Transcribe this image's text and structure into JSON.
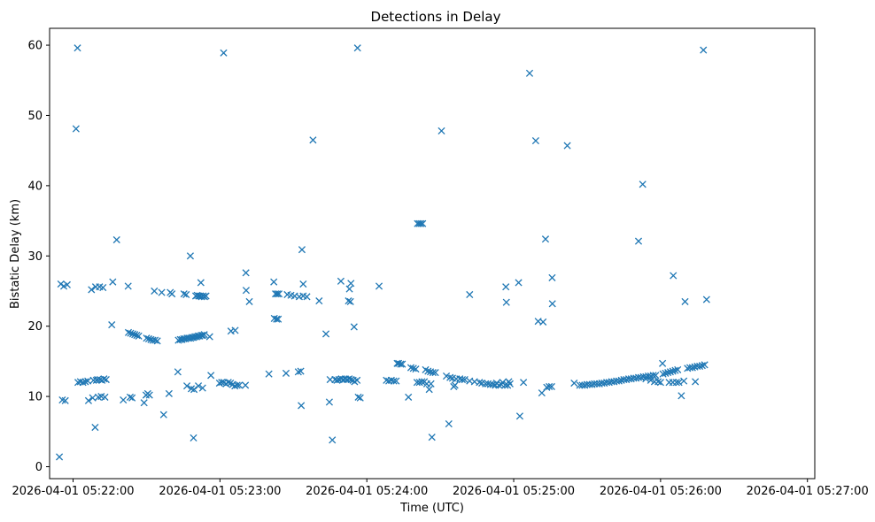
{
  "chart_data": {
    "type": "scatter",
    "title": "Detections in Delay",
    "xlabel": "Time (UTC)",
    "ylabel": "Bistatic Delay (km)",
    "x_unit": "seconds after 2026-04-01 05:21:00 UTC",
    "xlim": [
      50.4,
      363.0
    ],
    "ylim": [
      -1.7,
      62.4
    ],
    "marker": "x",
    "color": "#1f77b4",
    "grid": false,
    "x_ticks": [
      {
        "value": 60,
        "label": "2026-04-01 05:22:00"
      },
      {
        "value": 120,
        "label": "2026-04-01 05:23:00"
      },
      {
        "value": 180,
        "label": "2026-04-01 05:24:00"
      },
      {
        "value": 240,
        "label": "2026-04-01 05:25:00"
      },
      {
        "value": 300,
        "label": "2026-04-01 05:26:00"
      },
      {
        "value": 360,
        "label": "2026-04-01 05:27:00"
      }
    ],
    "y_ticks": [
      {
        "value": 0,
        "label": "0"
      },
      {
        "value": 10,
        "label": "10"
      },
      {
        "value": 20,
        "label": "20"
      },
      {
        "value": 30,
        "label": "30"
      },
      {
        "value": 40,
        "label": "40"
      },
      {
        "value": 50,
        "label": "50"
      },
      {
        "value": 60,
        "label": "60"
      }
    ],
    "points": [
      [
        54.4,
        1.4
      ],
      [
        55.0,
        26.0
      ],
      [
        55.6,
        9.5
      ],
      [
        56.2,
        25.7
      ],
      [
        56.8,
        9.4
      ],
      [
        57.6,
        25.9
      ],
      [
        61.2,
        48.1
      ],
      [
        61.8,
        59.6
      ],
      [
        62.0,
        12.0
      ],
      [
        63.0,
        12.1
      ],
      [
        64.0,
        12.0
      ],
      [
        65.0,
        12.1
      ],
      [
        66.0,
        12.2
      ],
      [
        66.3,
        9.4
      ],
      [
        67.5,
        25.2
      ],
      [
        68.0,
        9.8
      ],
      [
        68.3,
        12.3
      ],
      [
        69.0,
        5.6
      ],
      [
        69.2,
        25.6
      ],
      [
        69.5,
        12.3
      ],
      [
        70.0,
        12.4
      ],
      [
        70.3,
        9.9
      ],
      [
        70.8,
        25.6
      ],
      [
        71.0,
        12.4
      ],
      [
        71.5,
        10.0
      ],
      [
        71.8,
        12.3
      ],
      [
        72.2,
        25.5
      ],
      [
        72.6,
        12.5
      ],
      [
        73.0,
        9.9
      ],
      [
        73.5,
        12.4
      ],
      [
        75.8,
        20.2
      ],
      [
        76.2,
        26.3
      ],
      [
        77.8,
        32.3
      ],
      [
        80.5,
        9.5
      ],
      [
        82.5,
        25.7
      ],
      [
        82.6,
        19.1
      ],
      [
        83.3,
        9.9
      ],
      [
        83.5,
        19.0
      ],
      [
        84.1,
        9.8
      ],
      [
        84.4,
        18.9
      ],
      [
        85.2,
        18.8
      ],
      [
        86.0,
        18.7
      ],
      [
        86.8,
        18.6
      ],
      [
        89.0,
        9.1
      ],
      [
        89.8,
        10.2
      ],
      [
        90.0,
        18.3
      ],
      [
        90.5,
        10.4
      ],
      [
        90.9,
        18.2
      ],
      [
        91.2,
        10.2
      ],
      [
        91.8,
        18.1
      ],
      [
        92.6,
        18.0
      ],
      [
        93.2,
        25.0
      ],
      [
        93.5,
        18.0
      ],
      [
        94.4,
        17.9
      ],
      [
        96.2,
        24.8
      ],
      [
        97.0,
        7.4
      ],
      [
        99.2,
        10.4
      ],
      [
        99.7,
        24.8
      ],
      [
        100.4,
        24.6
      ],
      [
        102.8,
        13.5
      ],
      [
        103.0,
        18.0
      ],
      [
        103.8,
        18.1
      ],
      [
        104.5,
        18.1
      ],
      [
        105.2,
        18.2
      ],
      [
        105.3,
        24.6
      ],
      [
        105.9,
        18.2
      ],
      [
        106.2,
        24.5
      ],
      [
        106.5,
        11.5
      ],
      [
        106.6,
        18.3
      ],
      [
        107.3,
        18.3
      ],
      [
        108.0,
        18.3
      ],
      [
        108.3,
        11.1
      ],
      [
        108.6,
        18.4
      ],
      [
        109.2,
        18.4
      ],
      [
        109.8,
        18.5
      ],
      [
        110.5,
        18.5
      ],
      [
        111.1,
        18.6
      ],
      [
        111.7,
        18.6
      ],
      [
        112.4,
        18.7
      ],
      [
        113.0,
        18.7
      ],
      [
        113.6,
        18.8
      ],
      [
        107.9,
        30.0
      ],
      [
        109.2,
        4.1
      ],
      [
        109.4,
        11.0
      ],
      [
        110.1,
        24.3
      ],
      [
        110.7,
        24.4
      ],
      [
        111.2,
        11.5
      ],
      [
        111.3,
        24.3
      ],
      [
        111.9,
        24.3
      ],
      [
        112.2,
        26.2
      ],
      [
        112.5,
        24.2
      ],
      [
        112.9,
        11.2
      ],
      [
        113.1,
        24.3
      ],
      [
        113.7,
        24.2
      ],
      [
        114.3,
        24.3
      ],
      [
        115.8,
        18.5
      ],
      [
        116.3,
        13.0
      ],
      [
        119.8,
        11.9
      ],
      [
        120.7,
        12.0
      ],
      [
        121.5,
        58.9
      ],
      [
        121.6,
        12.0
      ],
      [
        122.5,
        11.8
      ],
      [
        123.4,
        12.0
      ],
      [
        124.3,
        11.9
      ],
      [
        124.5,
        19.3
      ],
      [
        125.2,
        11.7
      ],
      [
        126.1,
        11.5
      ],
      [
        126.2,
        19.4
      ],
      [
        127.0,
        11.6
      ],
      [
        127.9,
        11.6
      ],
      [
        130.4,
        11.6
      ],
      [
        130.6,
        27.6
      ],
      [
        130.7,
        25.1
      ],
      [
        132.0,
        23.5
      ],
      [
        140.0,
        13.2
      ],
      [
        142.0,
        26.3
      ],
      [
        142.2,
        21.1
      ],
      [
        142.7,
        24.6
      ],
      [
        143.1,
        21.0
      ],
      [
        143.4,
        24.6
      ],
      [
        143.8,
        21.0
      ],
      [
        144.1,
        24.6
      ],
      [
        147.0,
        13.3
      ],
      [
        147.5,
        24.5
      ],
      [
        149.0,
        24.4
      ],
      [
        150.5,
        24.3
      ],
      [
        152.0,
        13.5
      ],
      [
        152.4,
        24.2
      ],
      [
        153.0,
        13.6
      ],
      [
        153.2,
        8.7
      ],
      [
        153.5,
        30.9
      ],
      [
        154.0,
        26.0
      ],
      [
        154.0,
        24.3
      ],
      [
        155.5,
        24.2
      ],
      [
        158.0,
        46.5
      ],
      [
        160.5,
        23.6
      ],
      [
        163.3,
        18.9
      ],
      [
        164.7,
        9.2
      ],
      [
        165.0,
        12.4
      ],
      [
        165.9,
        3.8
      ],
      [
        167.0,
        12.4
      ],
      [
        167.8,
        12.3
      ],
      [
        168.6,
        12.4
      ],
      [
        169.4,
        26.4
      ],
      [
        169.6,
        12.5
      ],
      [
        170.4,
        12.4
      ],
      [
        171.2,
        12.5
      ],
      [
        172.0,
        12.4
      ],
      [
        172.5,
        23.6
      ],
      [
        172.8,
        12.5
      ],
      [
        172.9,
        25.3
      ],
      [
        173.3,
        23.5
      ],
      [
        173.5,
        26.1
      ],
      [
        173.6,
        12.4
      ],
      [
        174.4,
        12.3
      ],
      [
        174.8,
        19.9
      ],
      [
        175.0,
        12.1
      ],
      [
        176.0,
        12.3
      ],
      [
        176.2,
        59.6
      ],
      [
        176.5,
        9.9
      ],
      [
        177.3,
        9.8
      ],
      [
        185.0,
        25.7
      ],
      [
        188.0,
        12.3
      ],
      [
        189.0,
        12.2
      ],
      [
        190.0,
        12.3
      ],
      [
        191.0,
        12.2
      ],
      [
        192.0,
        12.2
      ],
      [
        192.4,
        14.7
      ],
      [
        193.0,
        14.7
      ],
      [
        193.8,
        14.6
      ],
      [
        194.5,
        14.6
      ],
      [
        197.0,
        9.9
      ],
      [
        198.0,
        14.1
      ],
      [
        199.0,
        14.0
      ],
      [
        200.0,
        13.9
      ],
      [
        200.5,
        12.0
      ],
      [
        201.5,
        12.0
      ],
      [
        200.7,
        34.6
      ],
      [
        201.4,
        34.6
      ],
      [
        202.1,
        34.6
      ],
      [
        202.5,
        12.1
      ],
      [
        202.8,
        34.6
      ],
      [
        203.5,
        12.1
      ],
      [
        204.0,
        13.8
      ],
      [
        204.5,
        11.8
      ],
      [
        205.0,
        13.6
      ],
      [
        205.5,
        11.0
      ],
      [
        206.0,
        13.5
      ],
      [
        206.2,
        11.8
      ],
      [
        206.6,
        4.2
      ],
      [
        207.0,
        13.4
      ],
      [
        208.0,
        13.4
      ],
      [
        210.5,
        47.8
      ],
      [
        212.5,
        12.9
      ],
      [
        213.5,
        6.1
      ],
      [
        214.0,
        12.7
      ],
      [
        215.0,
        12.6
      ],
      [
        215.5,
        11.4
      ],
      [
        216.0,
        11.6
      ],
      [
        216.5,
        12.5
      ],
      [
        218.0,
        12.5
      ],
      [
        219.0,
        12.4
      ],
      [
        220.0,
        12.4
      ],
      [
        222.0,
        24.5
      ],
      [
        222.0,
        12.2
      ],
      [
        224.0,
        12.1
      ],
      [
        226.0,
        12.0
      ],
      [
        227.0,
        11.9
      ],
      [
        228.5,
        11.8
      ],
      [
        229.5,
        11.8
      ],
      [
        230.5,
        11.7
      ],
      [
        231.5,
        11.7
      ],
      [
        232.5,
        11.6
      ],
      [
        233.0,
        11.9
      ],
      [
        234.0,
        11.6
      ],
      [
        235.0,
        11.7
      ],
      [
        235.5,
        12.0
      ],
      [
        236.5,
        11.6
      ],
      [
        236.8,
        25.6
      ],
      [
        237.0,
        23.4
      ],
      [
        237.5,
        11.6
      ],
      [
        238.0,
        12.1
      ],
      [
        238.5,
        11.8
      ],
      [
        242.0,
        26.2
      ],
      [
        242.5,
        7.2
      ],
      [
        244.0,
        12.0
      ],
      [
        246.5,
        56.0
      ],
      [
        249.0,
        46.4
      ],
      [
        250.0,
        20.7
      ],
      [
        251.5,
        10.5
      ],
      [
        252.0,
        20.6
      ],
      [
        253.0,
        32.4
      ],
      [
        253.5,
        11.3
      ],
      [
        254.5,
        11.4
      ],
      [
        255.5,
        11.4
      ],
      [
        255.7,
        26.9
      ],
      [
        255.8,
        23.2
      ],
      [
        261.9,
        45.7
      ],
      [
        264.7,
        11.9
      ],
      [
        267.0,
        11.6
      ],
      [
        268.0,
        11.6
      ],
      [
        269.0,
        11.6
      ],
      [
        270.0,
        11.7
      ],
      [
        271.0,
        11.7
      ],
      [
        272.0,
        11.7
      ],
      [
        273.0,
        11.8
      ],
      [
        274.0,
        11.8
      ],
      [
        275.0,
        11.8
      ],
      [
        276.0,
        11.9
      ],
      [
        277.0,
        11.9
      ],
      [
        278.0,
        12.0
      ],
      [
        279.0,
        12.0
      ],
      [
        280.0,
        12.1
      ],
      [
        281.0,
        12.1
      ],
      [
        282.0,
        12.2
      ],
      [
        283.0,
        12.2
      ],
      [
        284.0,
        12.3
      ],
      [
        285.0,
        12.4
      ],
      [
        286.0,
        12.4
      ],
      [
        287.0,
        12.5
      ],
      [
        288.0,
        12.5
      ],
      [
        289.0,
        12.6
      ],
      [
        290.0,
        12.6
      ],
      [
        291.0,
        12.7
      ],
      [
        292.0,
        12.7
      ],
      [
        293.0,
        12.8
      ],
      [
        294.0,
        12.8
      ],
      [
        295.0,
        12.9
      ],
      [
        296.0,
        12.9
      ],
      [
        297.0,
        13.0
      ],
      [
        298.0,
        13.0
      ],
      [
        291.0,
        32.1
      ],
      [
        292.7,
        40.2
      ],
      [
        294.0,
        12.5
      ],
      [
        296.0,
        12.3
      ],
      [
        297.5,
        12.1
      ],
      [
        299.0,
        12.1
      ],
      [
        300.0,
        12.0
      ],
      [
        300.8,
        14.7
      ],
      [
        301.0,
        13.2
      ],
      [
        302.0,
        13.3
      ],
      [
        303.0,
        13.4
      ],
      [
        304.0,
        13.5
      ],
      [
        305.0,
        13.6
      ],
      [
        306.0,
        13.7
      ],
      [
        307.0,
        13.8
      ],
      [
        305.2,
        27.2
      ],
      [
        303.5,
        12.0
      ],
      [
        305.0,
        12.0
      ],
      [
        306.5,
        12.0
      ],
      [
        307.5,
        12.0
      ],
      [
        308.5,
        10.1
      ],
      [
        309.5,
        12.2
      ],
      [
        310.0,
        23.5
      ],
      [
        311.0,
        14.0
      ],
      [
        312.0,
        14.1
      ],
      [
        313.0,
        14.1
      ],
      [
        314.0,
        14.2
      ],
      [
        315.0,
        14.3
      ],
      [
        316.0,
        14.3
      ],
      [
        317.0,
        14.4
      ],
      [
        318.0,
        14.5
      ],
      [
        314.2,
        12.1
      ],
      [
        317.5,
        59.3
      ],
      [
        318.8,
        23.8
      ]
    ]
  }
}
